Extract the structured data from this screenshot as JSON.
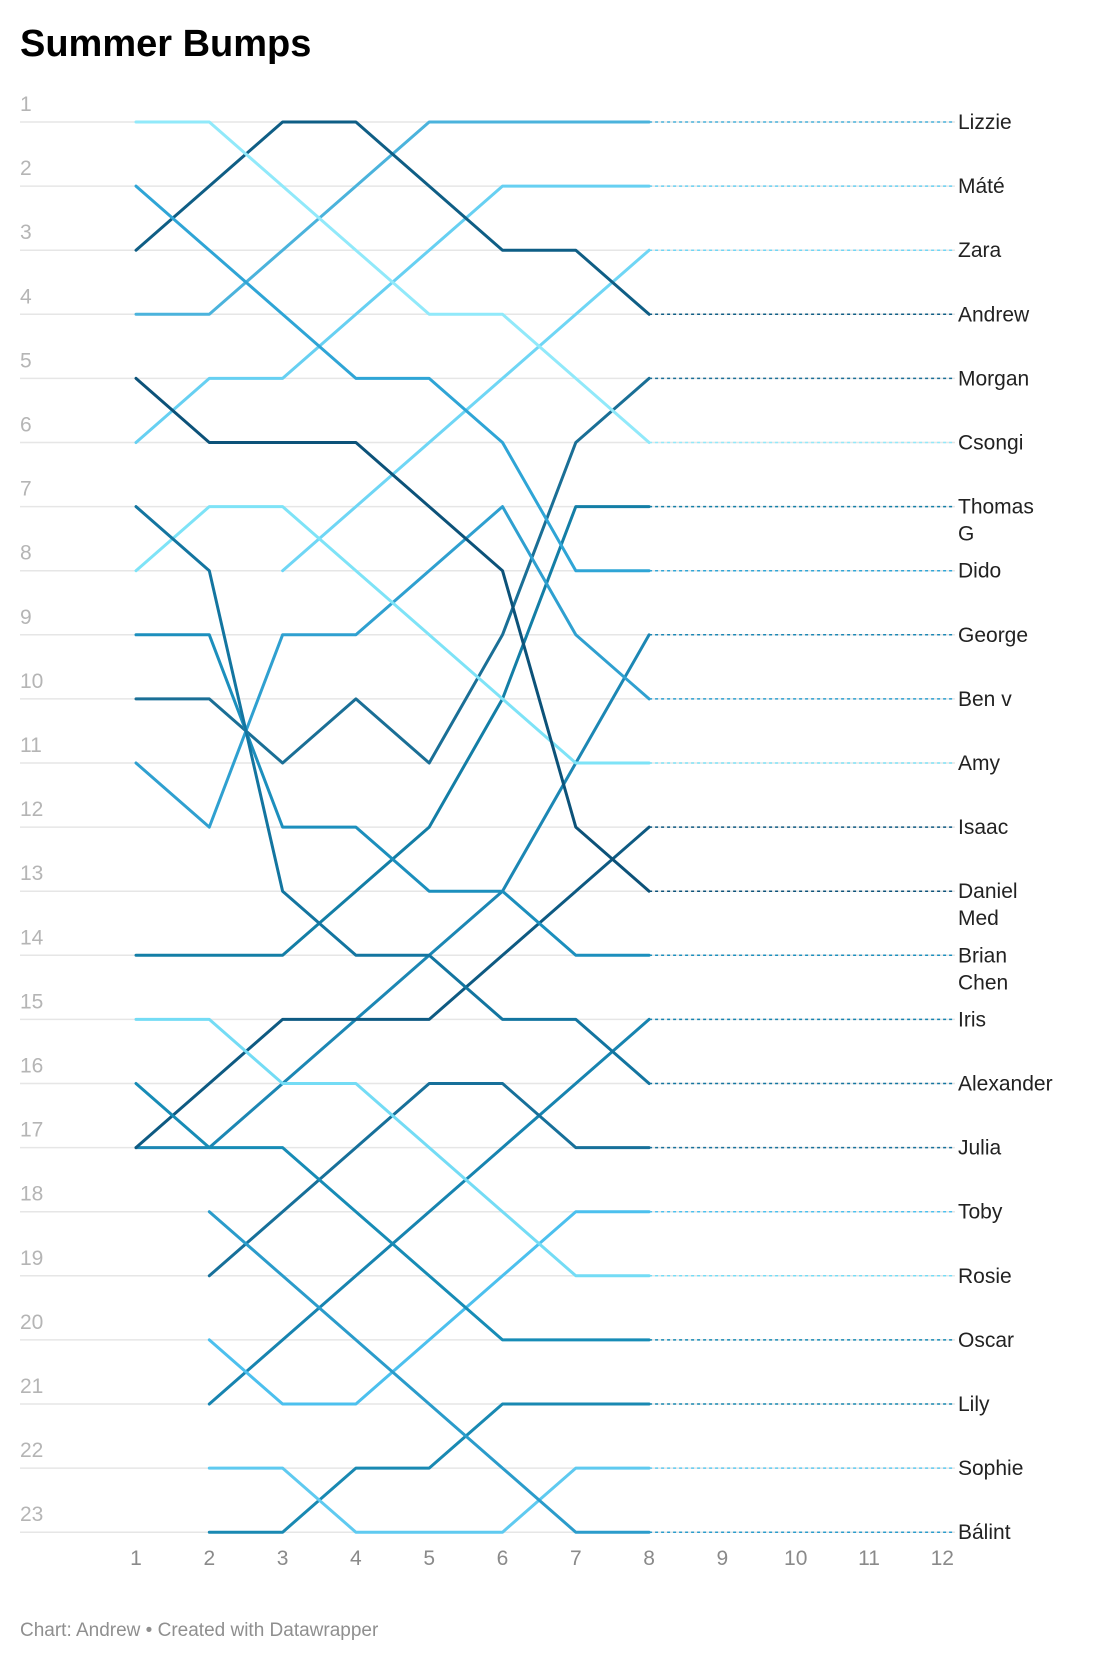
{
  "page": {
    "title": "Summer Bumps",
    "footer": "Chart: Andrew • Created with Datawrapper"
  },
  "chart_data": {
    "type": "line",
    "title": "Summer Bumps",
    "xlabel": "",
    "ylabel": "",
    "x_ticks": [
      "1",
      "2",
      "3",
      "4",
      "5",
      "6",
      "7",
      "8",
      "9",
      "10",
      "11",
      "12"
    ],
    "y_ticks": [
      "1",
      "2",
      "3",
      "4",
      "5",
      "6",
      "7",
      "8",
      "9",
      "10",
      "11",
      "12",
      "13",
      "14",
      "15",
      "16",
      "17",
      "18",
      "19",
      "20",
      "21",
      "22",
      "23"
    ],
    "xlim": [
      1,
      12
    ],
    "ylim": [
      1,
      23
    ],
    "y_inverted": true,
    "grid": "horizontal",
    "x": [
      1,
      2,
      3,
      4,
      5,
      6,
      7,
      8
    ],
    "series": [
      {
        "name": "Lizzie",
        "label_lines": [
          "Lizzie"
        ],
        "color": "#4bb3dc",
        "values": [
          4,
          4,
          3,
          2,
          1,
          1,
          1,
          1
        ]
      },
      {
        "name": "Máté",
        "label_lines": [
          "Máté"
        ],
        "color": "#67d0f2",
        "values": [
          6,
          5,
          5,
          4,
          3,
          2,
          2,
          2
        ]
      },
      {
        "name": "Zara",
        "label_lines": [
          "Zara"
        ],
        "color": "#6fd6f5",
        "values": [
          null,
          null,
          8,
          7,
          6,
          5,
          4,
          3
        ]
      },
      {
        "name": "Andrew",
        "label_lines": [
          "Andrew"
        ],
        "color": "#0f5e85",
        "values": [
          3,
          2,
          1,
          1,
          2,
          3,
          3,
          4
        ]
      },
      {
        "name": "Morgan",
        "label_lines": [
          "Morgan"
        ],
        "color": "#1a6f96",
        "values": [
          10,
          10,
          11,
          10,
          11,
          9,
          6,
          5
        ]
      },
      {
        "name": "Csongi",
        "label_lines": [
          "Csongi"
        ],
        "color": "#91e9fa",
        "values": [
          1,
          1,
          2,
          3,
          4,
          4,
          5,
          6
        ]
      },
      {
        "name": "Thomas G",
        "label_lines": [
          "Thomas",
          "G"
        ],
        "color": "#137ea6",
        "values": [
          14,
          14,
          14,
          13,
          12,
          10,
          7,
          7
        ]
      },
      {
        "name": "Dido",
        "label_lines": [
          "Dido"
        ],
        "color": "#2fa5d6",
        "values": [
          2,
          3,
          4,
          5,
          5,
          6,
          8,
          8
        ]
      },
      {
        "name": "George",
        "label_lines": [
          "George"
        ],
        "color": "#1c87b4",
        "values": [
          17,
          17,
          16,
          15,
          14,
          13,
          11,
          9
        ]
      },
      {
        "name": "Ben v",
        "label_lines": [
          "Ben v"
        ],
        "color": "#2fa0d0",
        "values": [
          11,
          12,
          9,
          9,
          8,
          7,
          9,
          10
        ]
      },
      {
        "name": "Amy",
        "label_lines": [
          "Amy"
        ],
        "color": "#7ee3f7",
        "values": [
          8,
          7,
          7,
          8,
          9,
          10,
          11,
          11
        ]
      },
      {
        "name": "Isaac",
        "label_lines": [
          "Isaac"
        ],
        "color": "#0e5a82",
        "values": [
          17,
          16,
          15,
          15,
          15,
          14,
          13,
          12
        ]
      },
      {
        "name": "Daniel Med",
        "label_lines": [
          "Daniel",
          "Med"
        ],
        "color": "#0c5279",
        "values": [
          5,
          6,
          6,
          6,
          7,
          8,
          12,
          13
        ]
      },
      {
        "name": "Brian Chen",
        "label_lines": [
          "Brian",
          "Chen"
        ],
        "color": "#1c8fbd",
        "values": [
          9,
          9,
          12,
          12,
          13,
          13,
          14,
          14
        ]
      },
      {
        "name": "Iris",
        "label_lines": [
          "Iris"
        ],
        "color": "#1784b0",
        "values": [
          null,
          21,
          20,
          19,
          18,
          17,
          16,
          15
        ]
      },
      {
        "name": "Alexander",
        "label_lines": [
          "Alexander"
        ],
        "color": "#1375a0",
        "values": [
          7,
          8,
          13,
          14,
          14,
          15,
          15,
          16
        ]
      },
      {
        "name": "Julia",
        "label_lines": [
          "Julia"
        ],
        "color": "#17709a",
        "values": [
          null,
          19,
          18,
          17,
          16,
          16,
          17,
          17
        ]
      },
      {
        "name": "Toby",
        "label_lines": [
          "Toby"
        ],
        "color": "#4cc0ee",
        "values": [
          null,
          20,
          21,
          21,
          20,
          19,
          18,
          18
        ]
      },
      {
        "name": "Rosie",
        "label_lines": [
          "Rosie"
        ],
        "color": "#74dcf5",
        "values": [
          15,
          15,
          16,
          16,
          17,
          18,
          19,
          19
        ]
      },
      {
        "name": "Oscar",
        "label_lines": [
          "Oscar"
        ],
        "color": "#178cb6",
        "values": [
          16,
          17,
          17,
          18,
          19,
          20,
          20,
          20
        ]
      },
      {
        "name": "Lily",
        "label_lines": [
          "Lily"
        ],
        "color": "#1989b2",
        "values": [
          null,
          23,
          23,
          22,
          22,
          21,
          21,
          21
        ]
      },
      {
        "name": "Sophie",
        "label_lines": [
          "Sophie"
        ],
        "color": "#5fcaf0",
        "values": [
          null,
          22,
          22,
          23,
          23,
          23,
          22,
          22
        ]
      },
      {
        "name": "Bálint",
        "label_lines": [
          "Bálint"
        ],
        "color": "#2b9ccb",
        "values": [
          null,
          18,
          19,
          20,
          21,
          22,
          23,
          23
        ]
      }
    ]
  }
}
